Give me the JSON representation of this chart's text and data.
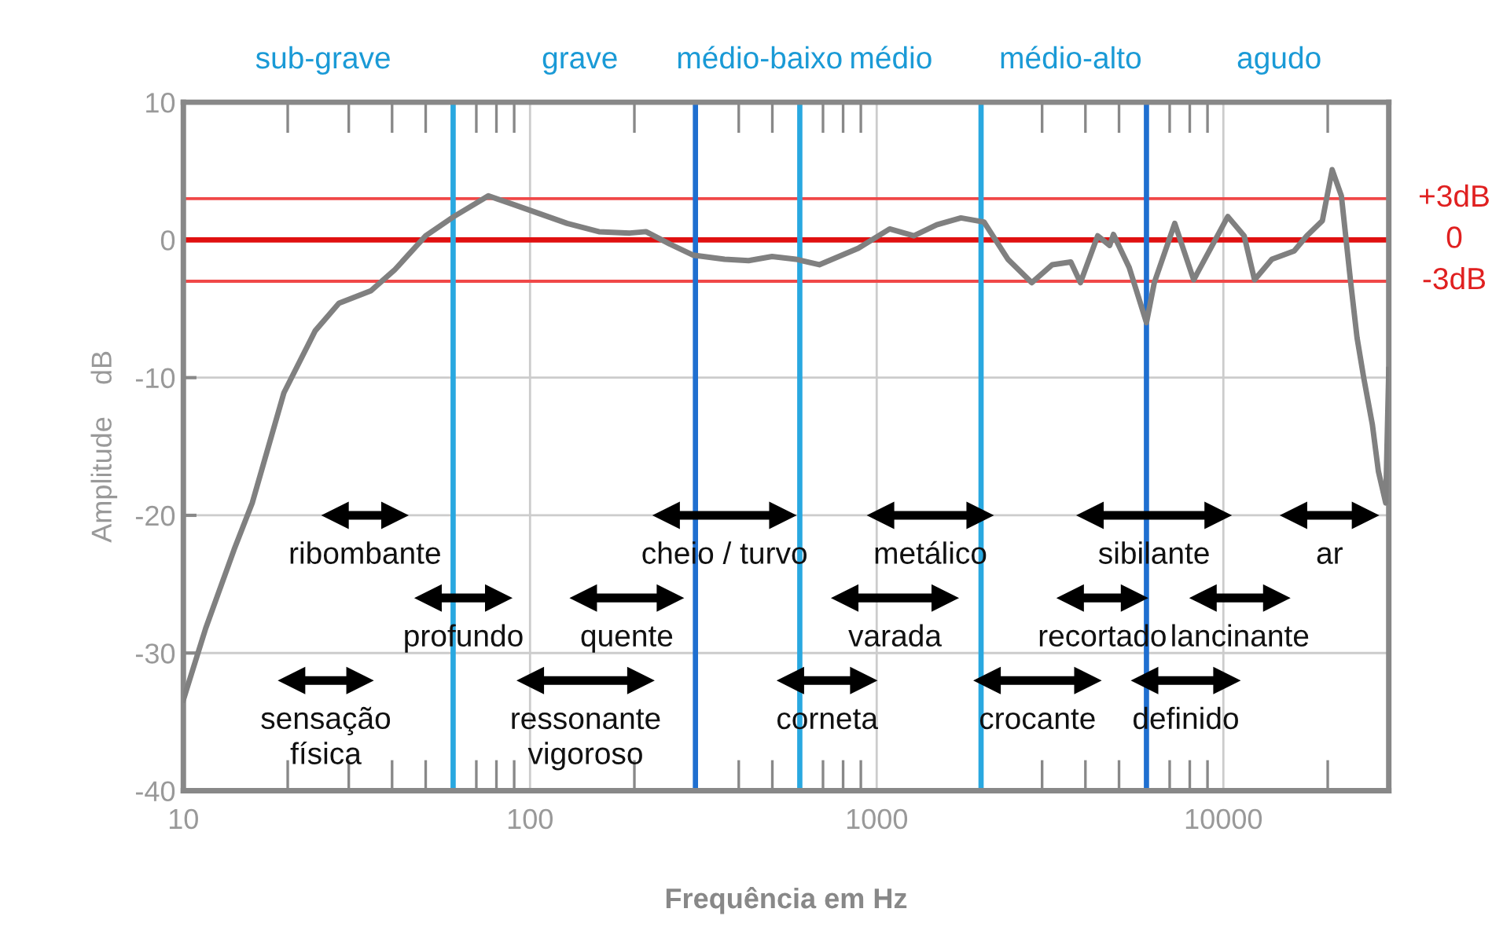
{
  "chart_data": {
    "type": "line",
    "xlabel": "Frequência em Hz",
    "ylabel": "Amplitude    dB",
    "log": "x",
    "grid": true,
    "marker": "none",
    "line_style": "solid",
    "xlim": [
      10,
      30000
    ],
    "xticks": [
      10,
      100,
      1000,
      10000
    ],
    "ylim": [
      -40,
      10
    ],
    "yticks": [
      -40,
      -30,
      -20,
      -10,
      0,
      10
    ],
    "series": [
      {
        "color": "#808080",
        "x": [
          10,
          11.6,
          14,
          15.8,
          19.5,
          24,
          28.1,
          34.7,
          40.6,
          50,
          60.3,
          75.8,
          89,
          104,
          128,
          158,
          194,
          216,
          253,
          295,
          364,
          427,
          499,
          584,
          683,
          885,
          1090,
          1280,
          1490,
          1750,
          2040,
          2390,
          2800,
          3210,
          3630,
          3870,
          4340,
          4700,
          4820,
          5350,
          6000,
          6320,
          7240,
          8210,
          10300,
          11480,
          12300,
          13800,
          16000,
          17400,
          19300,
          20600,
          21900,
          23300,
          24300,
          25400,
          26900,
          28000,
          29400,
          30000
        ],
        "values": [
          -33.4,
          -28.2,
          -22.5,
          -19.1,
          -11.1,
          -6.6,
          -4.6,
          -3.7,
          -2.2,
          0.3,
          1.7,
          3.2,
          2.6,
          2.0,
          1.2,
          0.6,
          0.5,
          0.6,
          -0.3,
          -1.1,
          -1.4,
          -1.5,
          -1.2,
          -1.4,
          -1.8,
          -0.6,
          0.8,
          0.3,
          1.1,
          1.6,
          1.3,
          -1.4,
          -3.1,
          -1.8,
          -1.6,
          -3.1,
          0.3,
          -0.4,
          0.4,
          -2.0,
          -6.0,
          -3.1,
          1.2,
          -2.9,
          1.7,
          0.3,
          -2.9,
          -1.4,
          -0.8,
          0.3,
          1.4,
          5.1,
          3.2,
          -3.1,
          -7.1,
          -10,
          -13.4,
          -16.8,
          -19.1,
          -9.4
        ]
      },
      {
        "name": "ribombante",
        "marker": "triangle",
        "color": "#000000",
        "x": [
          27.5,
          40.6
        ],
        "values": [
          -20,
          -20
        ]
      },
      {
        "name": "cheio / turvo",
        "marker": "triangle",
        "color": "#000000",
        "x": [
          248,
          534
        ],
        "values": [
          -20,
          -20
        ]
      },
      {
        "name": "metálico",
        "marker": "triangle",
        "color": "#000000",
        "x": [
          1030,
          1980
        ],
        "values": [
          -20,
          -20
        ]
      },
      {
        "name": "sibilante",
        "marker": "triangle",
        "color": "#000000",
        "x": [
          4140,
          9620
        ],
        "values": [
          -20,
          -20
        ]
      },
      {
        "name": "ar",
        "marker": "triangle",
        "color": "#000000",
        "x": [
          16000,
          25600
        ],
        "values": [
          -20,
          -20
        ]
      },
      {
        "name": "profundo",
        "marker": "triangle",
        "color": "#000000",
        "x": [
          51,
          80.9
        ],
        "values": [
          -26,
          -26
        ]
      },
      {
        "name": "quente",
        "marker": "triangle",
        "color": "#000000",
        "x": [
          143,
          253
        ],
        "values": [
          -26,
          -26
        ]
      },
      {
        "name": "varada",
        "marker": "triangle",
        "color": "#000000",
        "x": [
          812,
          1570
        ],
        "values": [
          -26,
          -26
        ]
      },
      {
        "name": "recortado",
        "marker": "triangle",
        "color": "#000000",
        "x": [
          3630,
          5520
        ],
        "values": [
          -26,
          -26
        ]
      },
      {
        "name": "lancinante",
        "marker": "triangle",
        "color": "#000000",
        "x": [
          8770,
          14200
        ],
        "values": [
          -26,
          -26
        ]
      },
      {
        "name": "sensação\nfísica",
        "marker": "triangle",
        "color": "#000000",
        "x": [
          20.6,
          32.2
        ],
        "values": [
          -32,
          -32
        ]
      },
      {
        "name": "ressonante\nvigoroso",
        "marker": "triangle",
        "color": "#000000",
        "x": [
          100.6,
          208
        ],
        "values": [
          -32,
          -32
        ]
      },
      {
        "name": "corneta",
        "marker": "triangle",
        "color": "#000000",
        "x": [
          566,
          914
        ],
        "values": [
          -32,
          -32
        ]
      },
      {
        "name": "crocante",
        "marker": "triangle",
        "color": "#000000",
        "x": [
          2090,
          4050
        ],
        "values": [
          -32,
          -32
        ]
      },
      {
        "name": "definido",
        "marker": "triangle",
        "color": "#000000",
        "x": [
          5950,
          10200
        ],
        "values": [
          -32,
          -32
        ]
      }
    ],
    "ref_lines": [
      {
        "axis": "y",
        "value": 3,
        "label": "+3dB",
        "color": "#f04848"
      },
      {
        "axis": "y",
        "value": 0,
        "label": "0",
        "color": "#e01010"
      },
      {
        "axis": "y",
        "value": -3,
        "label": "-3dB",
        "color": "#f04848"
      },
      {
        "axis": "x",
        "value": 60,
        "color": "#29a8e0"
      },
      {
        "axis": "x",
        "value": 300,
        "color": "#1f6fd0"
      },
      {
        "axis": "x",
        "value": 600,
        "color": "#29a8e0"
      },
      {
        "axis": "x",
        "value": 2000,
        "color": "#29a8e0"
      },
      {
        "axis": "x",
        "value": 6000,
        "color": "#1f6fd0"
      }
    ],
    "annotations": [
      "sub-grave",
      "grave",
      "médio-baixo",
      "médio",
      "médio-alto",
      "agudo"
    ]
  }
}
